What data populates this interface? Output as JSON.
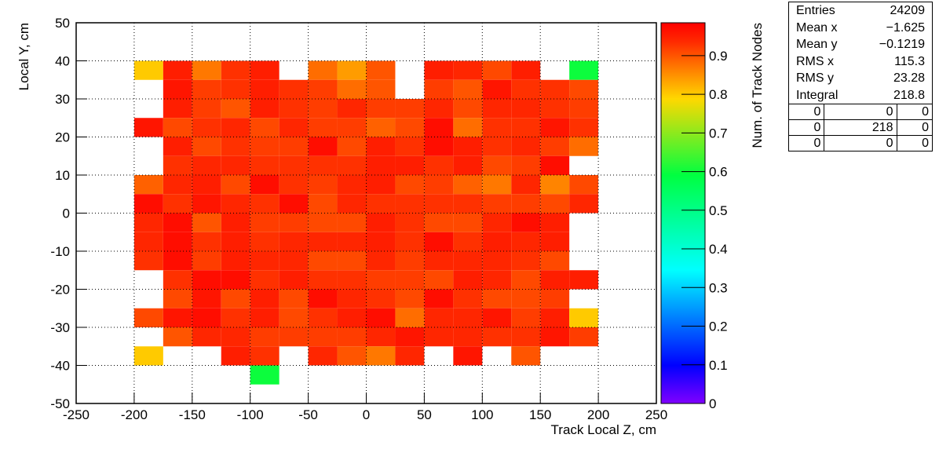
{
  "chart_data": {
    "type": "heatmap",
    "xlabel": "Track Local Z, cm",
    "ylabel": "Local Y, cm",
    "zlabel": "Num. of Track Nodes",
    "xlim": [
      -250,
      250
    ],
    "ylim": [
      -50,
      50
    ],
    "zlim": [
      0,
      0.985
    ],
    "xticks": [
      -250,
      -200,
      -150,
      -100,
      -50,
      0,
      50,
      100,
      150,
      200,
      250
    ],
    "yticks": [
      -50,
      -40,
      -30,
      -20,
      -10,
      0,
      10,
      20,
      30,
      40,
      50
    ],
    "zticks": [
      0,
      0.1,
      0.2,
      0.3,
      0.4,
      0.5,
      0.6,
      0.7,
      0.8,
      0.9
    ],
    "grid": true,
    "colorscale": [
      [
        0,
        "#8000ff"
      ],
      [
        0.1,
        "#0000ff"
      ],
      [
        0.35,
        "#00ffff"
      ],
      [
        0.6,
        "#00ff40"
      ],
      [
        0.8,
        "#ffd800"
      ],
      [
        0.87,
        "#ff8800"
      ],
      [
        0.95,
        "#ff2a00"
      ],
      [
        1,
        "#ff0000"
      ]
    ],
    "xbins": [
      -200,
      -175,
      -150,
      -125,
      -100,
      -75,
      -50,
      -25,
      0,
      25,
      50,
      75,
      100,
      125,
      150,
      175,
      200
    ],
    "ybins": [
      40,
      35,
      30,
      25,
      20,
      15,
      10,
      5,
      0,
      -5,
      -10,
      -15,
      -20,
      -25,
      -30,
      -35,
      -40,
      -45
    ],
    "values": [
      [
        0.8,
        0.95,
        0.87,
        0.93,
        0.95,
        null,
        0.88,
        0.84,
        0.9,
        null,
        0.95,
        0.94,
        0.91,
        0.95,
        null,
        0.6
      ],
      [
        null,
        0.96,
        0.92,
        0.93,
        0.95,
        0.93,
        0.92,
        0.88,
        0.9,
        null,
        0.92,
        0.9,
        0.96,
        0.93,
        0.93,
        0.91
      ],
      [
        null,
        0.95,
        0.92,
        0.9,
        0.95,
        0.93,
        0.92,
        0.94,
        0.92,
        0.92,
        0.94,
        0.91,
        0.94,
        0.94,
        0.93,
        0.92
      ],
      [
        0.96,
        0.91,
        0.93,
        0.94,
        0.91,
        0.94,
        0.92,
        0.92,
        0.89,
        0.91,
        0.97,
        0.88,
        0.93,
        0.93,
        0.96,
        0.93
      ],
      [
        null,
        0.95,
        0.91,
        0.93,
        0.92,
        0.92,
        0.97,
        0.91,
        0.95,
        0.93,
        0.97,
        0.95,
        0.93,
        0.94,
        0.92,
        0.88
      ],
      [
        null,
        0.93,
        0.94,
        0.94,
        0.93,
        0.93,
        0.93,
        0.93,
        0.95,
        0.95,
        0.93,
        0.95,
        0.91,
        0.92,
        0.97,
        null
      ],
      [
        0.89,
        0.94,
        0.95,
        0.91,
        0.97,
        0.93,
        0.92,
        0.94,
        0.95,
        0.91,
        0.92,
        0.89,
        0.87,
        0.94,
        0.86,
        0.91
      ],
      [
        0.97,
        0.93,
        0.96,
        0.94,
        0.93,
        0.97,
        0.91,
        0.94,
        0.93,
        0.93,
        0.93,
        0.93,
        0.92,
        0.92,
        0.91,
        0.94
      ],
      [
        0.94,
        0.97,
        0.9,
        0.95,
        0.92,
        0.92,
        0.91,
        0.91,
        0.95,
        0.93,
        0.91,
        0.91,
        0.94,
        0.97,
        0.95,
        null
      ],
      [
        0.94,
        0.97,
        0.93,
        0.95,
        0.93,
        0.94,
        0.94,
        0.94,
        0.95,
        0.93,
        0.97,
        0.93,
        0.95,
        0.94,
        0.95,
        null
      ],
      [
        0.93,
        0.97,
        0.92,
        0.95,
        0.94,
        0.94,
        0.91,
        0.91,
        0.94,
        0.92,
        0.94,
        0.94,
        0.94,
        0.93,
        0.91,
        null
      ],
      [
        null,
        0.93,
        0.97,
        0.97,
        0.93,
        0.95,
        0.93,
        0.93,
        0.92,
        0.92,
        0.91,
        0.95,
        0.94,
        0.91,
        0.95,
        0.95
      ],
      [
        null,
        0.91,
        0.96,
        0.91,
        0.95,
        0.91,
        0.97,
        0.94,
        0.93,
        0.91,
        0.97,
        0.93,
        0.91,
        0.91,
        0.92,
        null
      ],
      [
        0.91,
        0.96,
        0.97,
        0.93,
        0.95,
        0.91,
        0.93,
        0.95,
        0.97,
        0.88,
        0.94,
        0.94,
        0.96,
        0.92,
        0.95,
        0.8
      ],
      [
        null,
        0.9,
        0.94,
        0.94,
        0.92,
        0.92,
        0.92,
        0.92,
        0.94,
        0.96,
        0.94,
        0.94,
        0.93,
        0.93,
        0.96,
        0.92
      ],
      [
        0.8,
        null,
        null,
        0.95,
        0.93,
        null,
        0.94,
        0.9,
        0.87,
        0.94,
        null,
        0.96,
        null,
        0.9,
        null,
        null
      ],
      [
        null,
        null,
        null,
        null,
        0.6,
        null,
        null,
        null,
        null,
        null,
        null,
        null,
        null,
        null,
        null,
        null
      ]
    ]
  },
  "stats": {
    "rows": [
      [
        "Entries",
        "24209"
      ],
      [
        "Mean x",
        "−1.625"
      ],
      [
        "Mean y",
        "−0.1219"
      ],
      [
        "RMS x",
        "115.3"
      ],
      [
        "RMS y",
        "23.28"
      ],
      [
        "Integral",
        "218.8"
      ]
    ],
    "table": [
      [
        "0",
        "0",
        "0"
      ],
      [
        "0",
        "218",
        "0"
      ],
      [
        "0",
        "0",
        "0"
      ]
    ]
  }
}
